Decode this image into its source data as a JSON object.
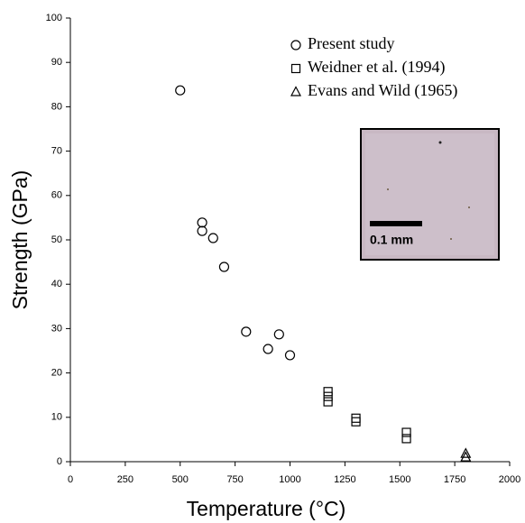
{
  "chart_data": {
    "type": "scatter",
    "x_label": "Temperature (°C)",
    "y_label": "Strength (GPa)",
    "xlim": [
      0,
      2000
    ],
    "xticks": [
      0,
      250,
      500,
      750,
      1000,
      1250,
      1500,
      1750,
      2000
    ],
    "ylim": [
      0,
      100
    ],
    "yticks": [
      0,
      10,
      20,
      30,
      40,
      50,
      60,
      70,
      80,
      90,
      100
    ],
    "grid": false,
    "legend": "upper right",
    "inset_label": "0.1 mm",
    "series": [
      {
        "name": "Present study",
        "marker": "circle",
        "color": "#000000",
        "x": [
          500,
          600,
          600,
          650,
          700,
          800,
          900,
          950,
          1000
        ],
        "y": [
          83.7,
          53.9,
          52.0,
          50.4,
          43.9,
          29.3,
          25.4,
          28.7,
          24.0
        ]
      },
      {
        "name": "Weidner et al. (1994)",
        "marker": "square",
        "color": "#000000",
        "x": [
          1173,
          1173,
          1173,
          1300,
          1300,
          1530,
          1530
        ],
        "y": [
          15.8,
          14.7,
          13.5,
          9.8,
          9.0,
          6.6,
          5.2
        ]
      },
      {
        "name": "Evans and Wild (1965)",
        "marker": "triangle",
        "color": "#000000",
        "x": [
          1800,
          1800
        ],
        "y": [
          1.8,
          1.0
        ]
      }
    ]
  }
}
